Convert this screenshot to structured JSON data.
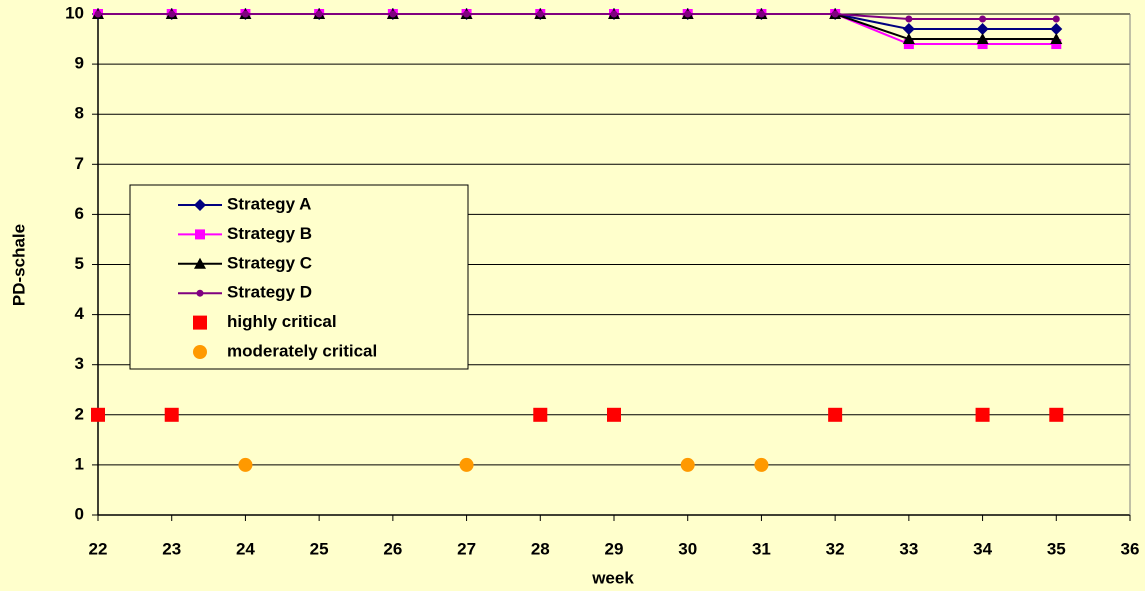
{
  "chart_data": {
    "type": "line",
    "x_label": "week",
    "y_label": "PD-schale",
    "xlim": [
      22,
      36
    ],
    "xticks": [
      22,
      23,
      24,
      25,
      26,
      27,
      28,
      29,
      30,
      31,
      32,
      33,
      34,
      35,
      36
    ],
    "ylim": [
      0,
      10
    ],
    "yticks": [
      0,
      1,
      2,
      3,
      4,
      5,
      6,
      7,
      8,
      9,
      10
    ],
    "grid": true,
    "legend": "left",
    "series": [
      {
        "name": "Strategy A",
        "color": "#000080",
        "marker": "diamond",
        "line": true,
        "x": [
          22,
          23,
          24,
          25,
          26,
          27,
          28,
          29,
          30,
          31,
          32,
          33,
          34,
          35
        ],
        "values": [
          10,
          10,
          10,
          10,
          10,
          10,
          10,
          10,
          10,
          10,
          10,
          9.7,
          9.7,
          9.7
        ]
      },
      {
        "name": "Strategy B",
        "color": "#ff00ff",
        "marker": "square",
        "line": true,
        "x": [
          22,
          23,
          24,
          25,
          26,
          27,
          28,
          29,
          30,
          31,
          32,
          33,
          34,
          35
        ],
        "values": [
          10,
          10,
          10,
          10,
          10,
          10,
          10,
          10,
          10,
          10,
          10,
          9.4,
          9.4,
          9.4
        ]
      },
      {
        "name": "Strategy C",
        "color": "#000000",
        "marker": "triangle",
        "line": true,
        "x": [
          22,
          23,
          24,
          25,
          26,
          27,
          28,
          29,
          30,
          31,
          32,
          33,
          34,
          35
        ],
        "values": [
          10,
          10,
          10,
          10,
          10,
          10,
          10,
          10,
          10,
          10,
          10,
          9.5,
          9.5,
          9.5
        ]
      },
      {
        "name": "Strategy D",
        "color": "#800080",
        "marker": "circle-small",
        "line": true,
        "x": [
          22,
          23,
          24,
          25,
          26,
          27,
          28,
          29,
          30,
          31,
          32,
          33,
          34,
          35
        ],
        "values": [
          10,
          10,
          10,
          10,
          10,
          10,
          10,
          10,
          10,
          10,
          10,
          9.9,
          9.9,
          9.9
        ]
      },
      {
        "name": "highly critical",
        "color": "#ff0000",
        "marker": "square-big",
        "line": false,
        "x": [
          22,
          23,
          28,
          29,
          32,
          34,
          35
        ],
        "values": [
          2,
          2,
          2,
          2,
          2,
          2,
          2
        ]
      },
      {
        "name": "moderately critical",
        "color": "#ff9900",
        "marker": "circle",
        "line": false,
        "x": [
          24,
          27,
          30,
          31
        ],
        "values": [
          1,
          1,
          1,
          1
        ]
      }
    ]
  }
}
